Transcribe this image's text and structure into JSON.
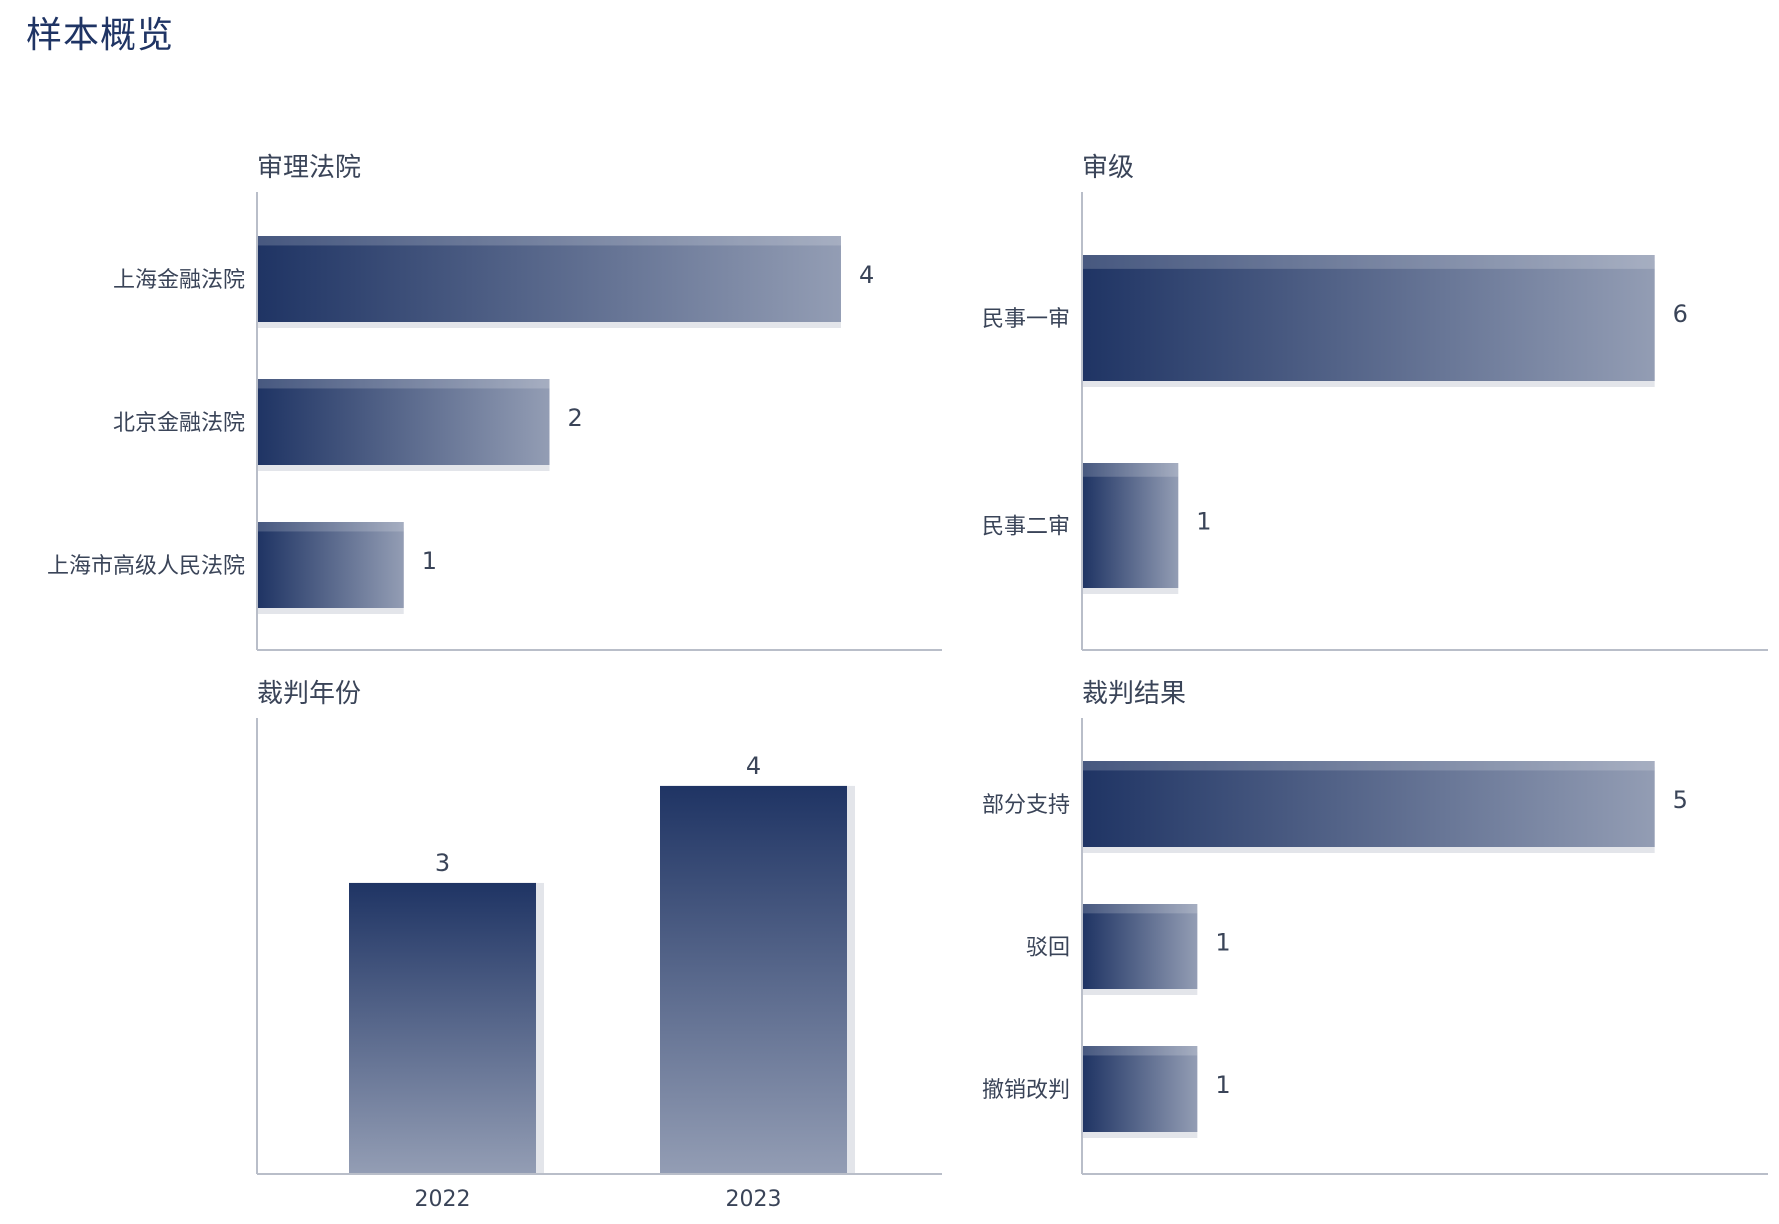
{
  "page": {
    "title": "样本概览"
  },
  "colors": {
    "bar_dark": "#1f3464",
    "bar_light": "#939db4",
    "shadow": "#e3e5ea",
    "axis": "#b9bec9",
    "text": "#3a4458",
    "title": "#1f3464"
  },
  "chart_data": [
    {
      "id": "court",
      "type": "bar",
      "orientation": "horizontal",
      "title": "审理法院",
      "categories": [
        "上海金融法院",
        "北京金融法院",
        "上海市高级人民法院"
      ],
      "values": [
        4,
        2,
        1
      ],
      "xlim": [
        0,
        4.7
      ]
    },
    {
      "id": "level",
      "type": "bar",
      "orientation": "horizontal",
      "title": "审级",
      "categories": [
        "民事一审",
        "民事二审"
      ],
      "values": [
        6,
        1
      ],
      "xlim": [
        0,
        7.2
      ]
    },
    {
      "id": "year",
      "type": "bar",
      "orientation": "vertical",
      "title": "裁判年份",
      "categories": [
        "2022",
        "2023"
      ],
      "values": [
        3,
        4
      ],
      "ylim": [
        0,
        4.7
      ]
    },
    {
      "id": "result",
      "type": "bar",
      "orientation": "horizontal",
      "title": "裁判结果",
      "categories": [
        "部分支持",
        "驳回",
        "撤销改判"
      ],
      "values": [
        5,
        1,
        1
      ],
      "xlim": [
        0,
        6
      ]
    }
  ]
}
